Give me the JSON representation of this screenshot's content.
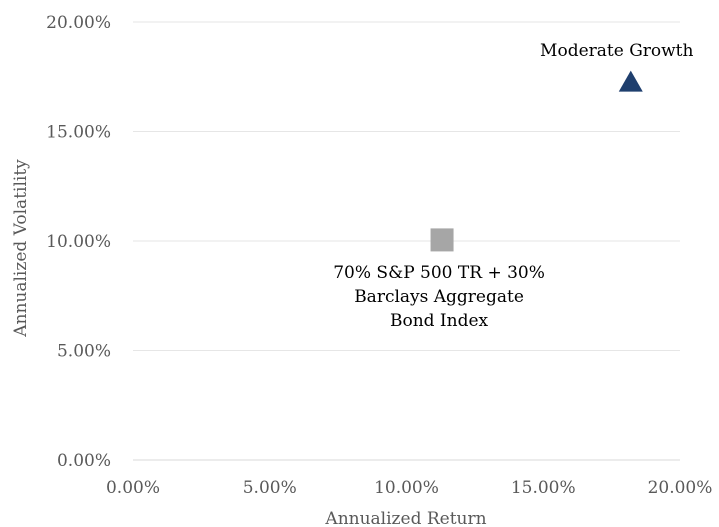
{
  "chart_data": {
    "type": "scatter",
    "title": "",
    "xlabel": "Annualized Return",
    "ylabel": "Annualized Volatility",
    "xlim": [
      0,
      20
    ],
    "ylim": [
      0,
      20
    ],
    "x_ticks": [
      "0.00%",
      "5.00%",
      "10.00%",
      "15.00%",
      "20.00%"
    ],
    "y_ticks": [
      "0.00%",
      "5.00%",
      "10.00%",
      "15.00%",
      "20.00%"
    ],
    "x_tick_values": [
      0,
      5,
      10,
      15,
      20
    ],
    "y_tick_values": [
      0,
      5,
      10,
      15,
      20
    ],
    "grid": "horizontal",
    "legend": "none",
    "points": [
      {
        "label_lines": [
          "70% S&P 500 TR + 30%",
          "Barclays Aggregate",
          "Bond Index"
        ],
        "x": 11.3,
        "y": 10.05,
        "marker": "square",
        "color": "#a6a6a6",
        "label_position": "below"
      },
      {
        "label_lines": [
          "Moderate Growth"
        ],
        "x": 18.2,
        "y": 17.3,
        "marker": "triangle",
        "color": "#1f3f6e",
        "label_position": "above"
      }
    ]
  }
}
